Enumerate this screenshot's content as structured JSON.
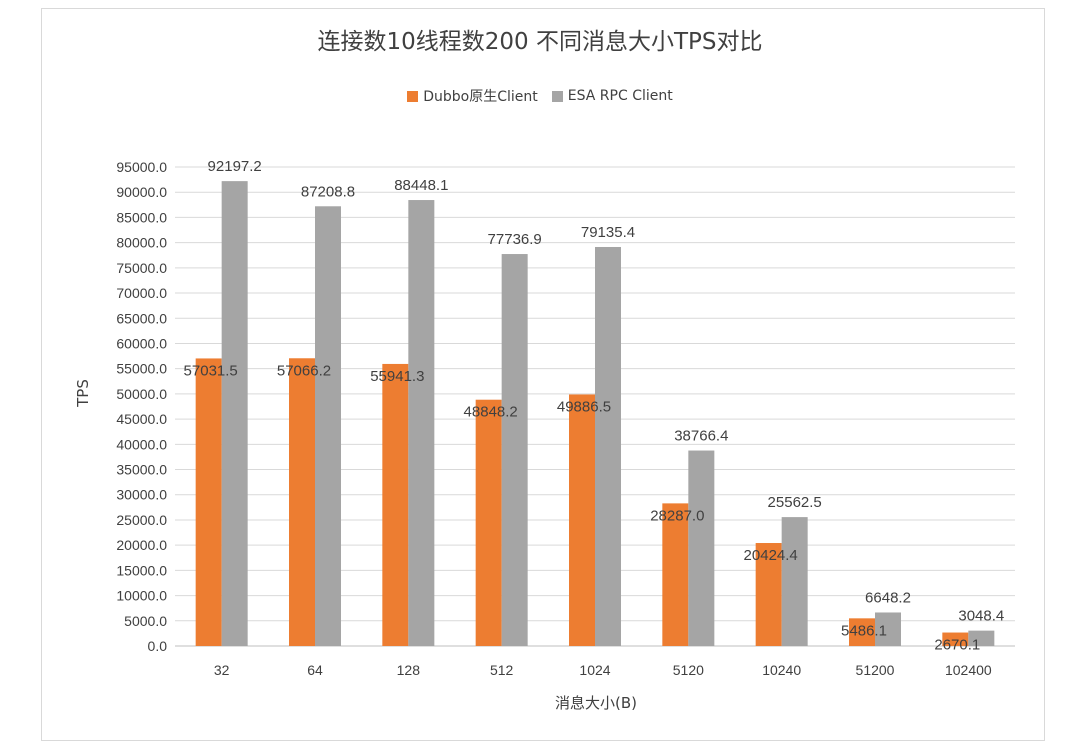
{
  "chart_data": {
    "type": "bar",
    "title": "连接数10线程数200 不同消息大小TPS对比",
    "xlabel": "消息大小(B)",
    "ylabel": "TPS",
    "categories": [
      "32",
      "64",
      "128",
      "512",
      "1024",
      "5120",
      "10240",
      "51200",
      "102400"
    ],
    "series": [
      {
        "name": "Dubbo原生Client",
        "color": "#ed7d31",
        "values": [
          57031.5,
          57066.2,
          55941.3,
          48848.2,
          49886.5,
          28287.0,
          20424.4,
          5486.1,
          2670.1
        ]
      },
      {
        "name": "ESA RPC Client",
        "color": "#a5a5a5",
        "values": [
          92197.2,
          87208.8,
          88448.1,
          77736.9,
          79135.4,
          38766.4,
          25562.5,
          6648.2,
          3048.4
        ]
      }
    ],
    "ylim": [
      0,
      95000
    ],
    "ytick_step": 5000,
    "grid": true,
    "legend_position": "top"
  }
}
